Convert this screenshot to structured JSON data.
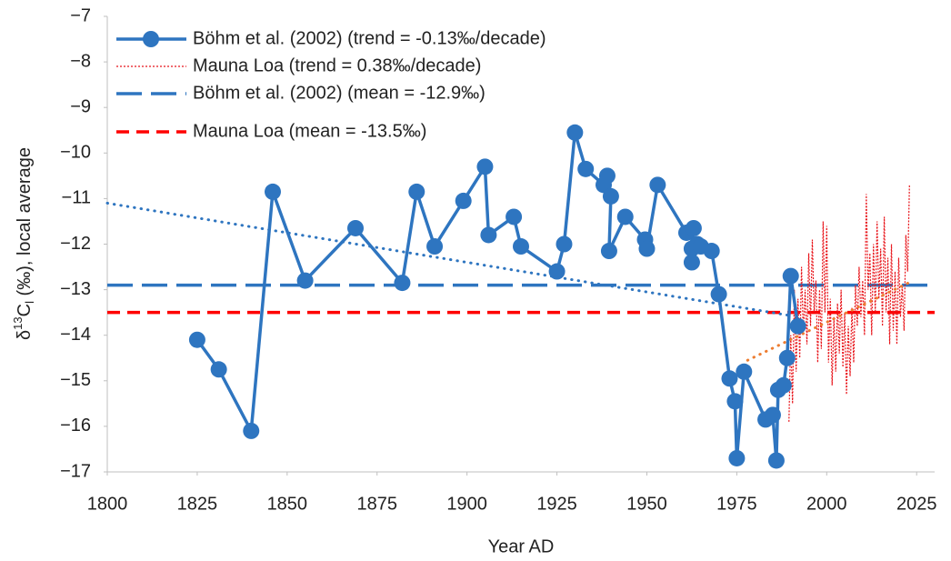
{
  "chart_data": {
    "type": "line",
    "xlabel": "Year AD",
    "ylabel": {
      "prefix": "δ",
      "sup": "13",
      "base": "C",
      "sub": "l",
      "rest": " (‰), local average"
    },
    "xlim": [
      1800,
      2030
    ],
    "ylim": [
      -17,
      -7
    ],
    "xticks": [
      1800,
      1825,
      1850,
      1875,
      1900,
      1925,
      1950,
      1975,
      2000,
      2025
    ],
    "yticks": [
      {
        "value": -17,
        "label": "−17"
      },
      {
        "value": -16,
        "label": "−16"
      },
      {
        "value": -15,
        "label": "−15"
      },
      {
        "value": -14,
        "label": "−14"
      },
      {
        "value": -13,
        "label": "−13"
      },
      {
        "value": -12,
        "label": "−12"
      },
      {
        "value": -11,
        "label": "−11"
      },
      {
        "value": -10,
        "label": "−10"
      },
      {
        "value": -9,
        "label": "−9"
      },
      {
        "value": -8,
        "label": "−8"
      },
      {
        "value": -7,
        "label": "−7"
      }
    ],
    "grid": false,
    "legend": "top-left",
    "series": [
      {
        "name": "Böhm et al. (2002) (trend = -0.13‰/decade)",
        "color": "#2e75c0",
        "style": "markers-line",
        "x": [
          1825,
          1831,
          1840,
          1846,
          1855,
          1869,
          1882,
          1886,
          1891,
          1899,
          1905,
          1906,
          1913,
          1915,
          1925,
          1927,
          1930,
          1933,
          1938,
          1939,
          1940,
          1939.5,
          1944,
          1949.5,
          1950,
          1953,
          1961,
          1963,
          1962.5,
          1962.5,
          1964,
          1965,
          1968,
          1970,
          1973,
          1974.5,
          1975,
          1977,
          1983,
          1985,
          1986,
          1986.5,
          1988,
          1989,
          1990,
          1992
        ],
        "values": [
          -14.1,
          -14.75,
          -16.1,
          -10.85,
          -12.8,
          -11.65,
          -12.85,
          -10.85,
          -12.05,
          -11.05,
          -10.3,
          -11.8,
          -11.4,
          -12.05,
          -12.6,
          -12.0,
          -9.55,
          -10.35,
          -10.7,
          -10.5,
          -10.95,
          -12.15,
          -11.4,
          -11.9,
          -12.1,
          -10.7,
          -11.75,
          -11.65,
          -12.1,
          -12.4,
          -12.0,
          -12.05,
          -12.15,
          -13.1,
          -14.95,
          -15.45,
          -16.7,
          -14.8,
          -15.85,
          -15.75,
          -16.75,
          -15.2,
          -15.1,
          -14.5,
          -12.7,
          -13.8
        ]
      },
      {
        "name": "Mauna Loa (trend = 0.38‰/decade)",
        "color": "#e8141a",
        "style": "dotted",
        "x": [
          1989.5,
          1990,
          1990.5,
          1991,
          1991.5,
          1992,
          1992.5,
          1993,
          1993.5,
          1994,
          1994.5,
          1995,
          1995.5,
          1996,
          1996.5,
          1997,
          1997.5,
          1998,
          1998.5,
          1999,
          1999.5,
          2000,
          2000.5,
          2001,
          2001.5,
          2002,
          2002.5,
          2003,
          2003.5,
          2004,
          2004.5,
          2005,
          2005.5,
          2006,
          2006.5,
          2007,
          2007.5,
          2008,
          2008.5,
          2009,
          2009.5,
          2010,
          2010.5,
          2011,
          2011.5,
          2012,
          2012.5,
          2013,
          2013.5,
          2014,
          2014.5,
          2015,
          2015.5,
          2016,
          2016.5,
          2017,
          2017.5,
          2018,
          2018.5,
          2019,
          2019.5,
          2020,
          2020.5,
          2021,
          2021.5,
          2022,
          2022.5,
          2023
        ],
        "values": [
          -15.9,
          -14.0,
          -15.5,
          -13.0,
          -14.8,
          -13.2,
          -14.5,
          -12.5,
          -14.0,
          -13.0,
          -14.2,
          -12.2,
          -13.8,
          -11.9,
          -13.5,
          -12.8,
          -14.6,
          -13.0,
          -14.3,
          -11.5,
          -13.5,
          -11.6,
          -14.6,
          -13.2,
          -15.1,
          -13.6,
          -14.8,
          -13.3,
          -14.4,
          -13.0,
          -14.7,
          -13.5,
          -15.3,
          -13.8,
          -14.9,
          -13.4,
          -14.6,
          -12.9,
          -13.8,
          -12.5,
          -13.6,
          -12.8,
          -14.0,
          -10.9,
          -13.0,
          -12.2,
          -14.0,
          -12.0,
          -13.5,
          -11.5,
          -13.2,
          -12.1,
          -13.8,
          -11.4,
          -13.5,
          -12.3,
          -14.2,
          -12.0,
          -13.9,
          -12.6,
          -14.2,
          -12.3,
          -13.6,
          -12.9,
          -13.9,
          -11.8,
          -12.6,
          -10.7
        ]
      },
      {
        "name": "Böhm et al. (2002) (mean = -12.9‰)",
        "color": "#2e75c0",
        "style": "dashed-long",
        "mean": -12.9
      },
      {
        "name": "Mauna Loa (mean = -13.5‰)",
        "color": "#ff0000",
        "style": "dashed",
        "mean": -13.5
      }
    ],
    "trend_lines": [
      {
        "color": "#2e75c0",
        "x": [
          1800,
          1990
        ],
        "values": [
          -11.1,
          -13.57
        ]
      },
      {
        "color": "#ed7d31",
        "x": [
          1978,
          2023
        ],
        "values": [
          -14.55,
          -12.84
        ]
      }
    ]
  }
}
